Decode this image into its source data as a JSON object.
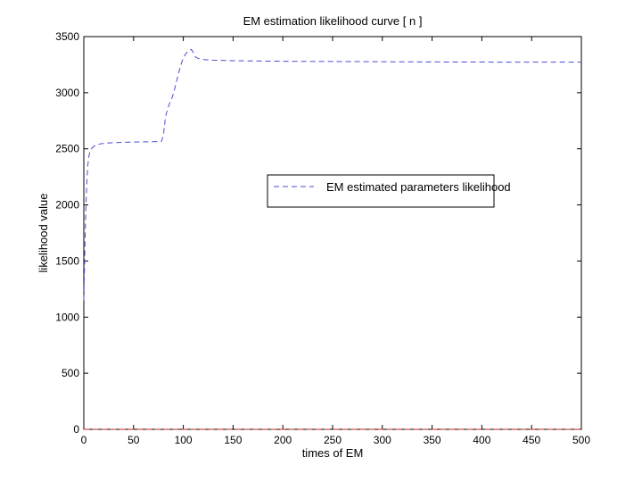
{
  "chart_data": {
    "type": "line",
    "title": "EM estimation likelihood curve [ n ]",
    "xlabel": "times of EM",
    "ylabel": "likelihood value",
    "xlim": [
      0,
      500
    ],
    "ylim": [
      0,
      3500
    ],
    "xticks": [
      0,
      50,
      100,
      150,
      200,
      250,
      300,
      350,
      400,
      450,
      500
    ],
    "yticks": [
      0,
      500,
      1000,
      1500,
      2000,
      2500,
      3000,
      3500
    ],
    "grid": false,
    "legend_position": "center-right",
    "legend": [
      "EM estimated parameters likelihood"
    ],
    "series": [
      {
        "name": "EM estimated parameters likelihood",
        "color": "#4a4ad6",
        "style": "dashed",
        "x": [
          0,
          1,
          2,
          3,
          4,
          5,
          6,
          8,
          10,
          13,
          17,
          22,
          30,
          40,
          50,
          60,
          70,
          78,
          80,
          82,
          84,
          86,
          88,
          90,
          92,
          94,
          96,
          98,
          100,
          102,
          104,
          106,
          108,
          110,
          112,
          115,
          120,
          130,
          150,
          200,
          250,
          300,
          350,
          400,
          450,
          500
        ],
        "y": [
          1150,
          1600,
          1950,
          2200,
          2350,
          2430,
          2470,
          2505,
          2520,
          2535,
          2545,
          2550,
          2555,
          2558,
          2560,
          2562,
          2563,
          2565,
          2620,
          2780,
          2850,
          2900,
          2940,
          2990,
          3060,
          3130,
          3200,
          3260,
          3310,
          3340,
          3365,
          3380,
          3385,
          3360,
          3320,
          3305,
          3295,
          3290,
          3285,
          3280,
          3278,
          3276,
          3274,
          3273,
          3272,
          3272
        ]
      },
      {
        "name": "",
        "color": "#cc2222",
        "style": "dashed",
        "x": [
          0,
          500
        ],
        "y": [
          0,
          0
        ]
      }
    ]
  }
}
